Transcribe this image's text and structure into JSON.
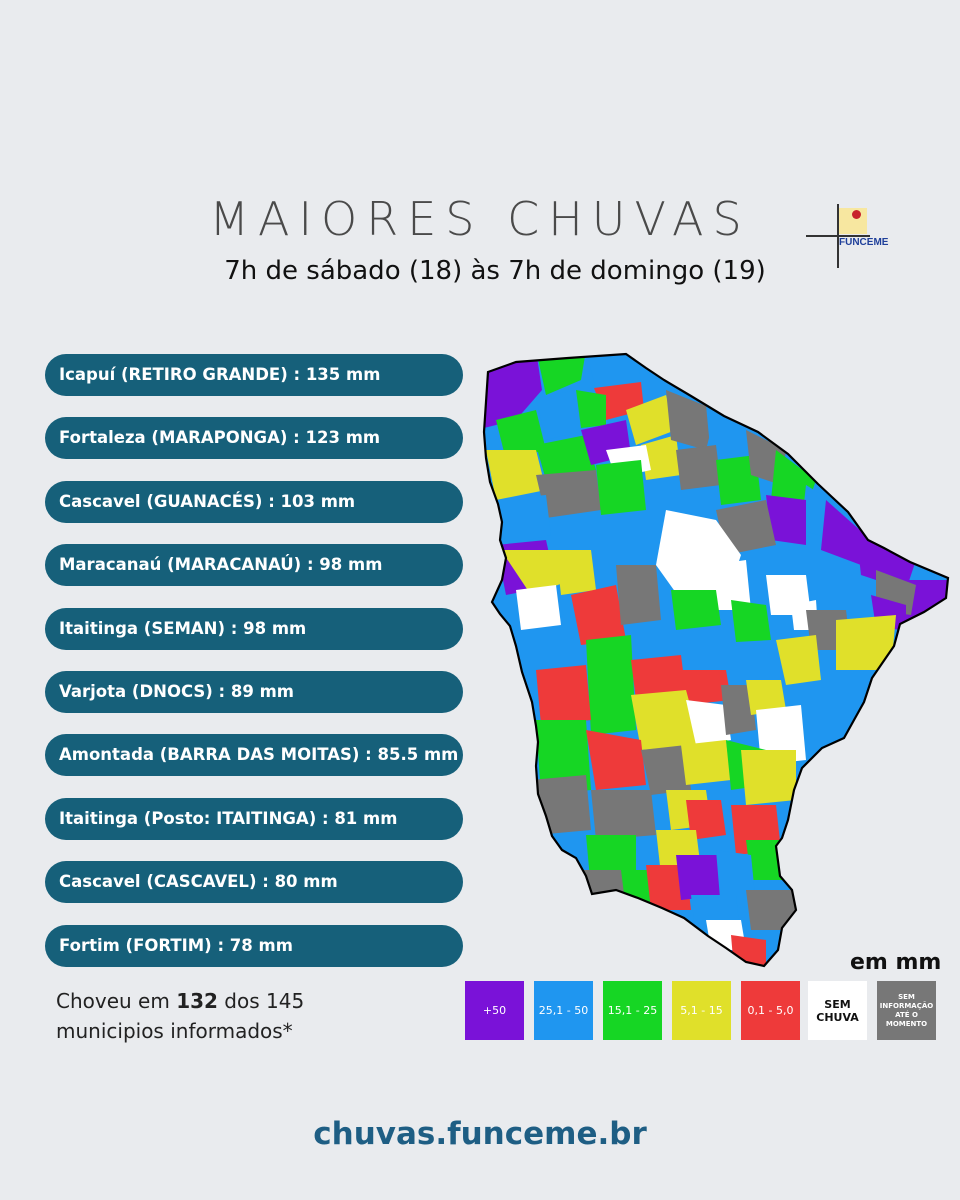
{
  "header": {
    "title": "MAIORES CHUVAS",
    "subtitle": "7h de sábado (18) às 7h de domingo (19)",
    "logo_text": "FUNCEME"
  },
  "ranking": [
    "Icapuí (RETIRO GRANDE) : 135 mm",
    "Fortaleza (MARAPONGA) : 123 mm",
    "Cascavel (GUANACÉS) : 103 mm",
    "Maracanaú (MARACANAÚ) : 98 mm",
    "Itaitinga (SEMAN) : 98 mm",
    "Varjota (DNOCS) : 89 mm",
    "Amontada (BARRA DAS MOITAS) : 85.5 mm",
    "Itaitinga (Posto: ITAITINGA) : 81 mm",
    "Cascavel (CASCAVEL) : 80 mm",
    "Fortim (FORTIM) : 78 mm"
  ],
  "summary": {
    "prefix": "Choveu em ",
    "count": "132",
    "suffix": " dos 145",
    "line2": "municipios informados*"
  },
  "legend": {
    "unit": "em mm",
    "classes": [
      {
        "label": "+50",
        "color": "#7a12d8",
        "text_color": "#ffffff"
      },
      {
        "label": "25,1 - 50",
        "color": "#1f96f0",
        "text_color": "#ffffff"
      },
      {
        "label": "15,1 - 25",
        "color": "#16d624",
        "text_color": "#ffffff"
      },
      {
        "label": "5,1 - 15",
        "color": "#e0e02a",
        "text_color": "#ffffff"
      },
      {
        "label": "0,1 - 5,0",
        "color": "#ee3a3a",
        "text_color": "#ffffff"
      },
      {
        "label": "SEM CHUVA",
        "color": "#ffffff",
        "text_color": "#111111"
      },
      {
        "label": "SEM INFORMAÇÃO ATÉ O MOMENTO",
        "color": "#777777",
        "text_color": "#ffffff"
      }
    ]
  },
  "map": {
    "region": "Ceará",
    "category_colors": {
      "purple": "#7a12d8",
      "blue": "#1f96f0",
      "green": "#16d624",
      "yellow": "#e0e02a",
      "red": "#ee3a3a",
      "white": "#ffffff",
      "gray": "#777777"
    }
  },
  "footer": {
    "website": "chuvas.funceme.br"
  }
}
